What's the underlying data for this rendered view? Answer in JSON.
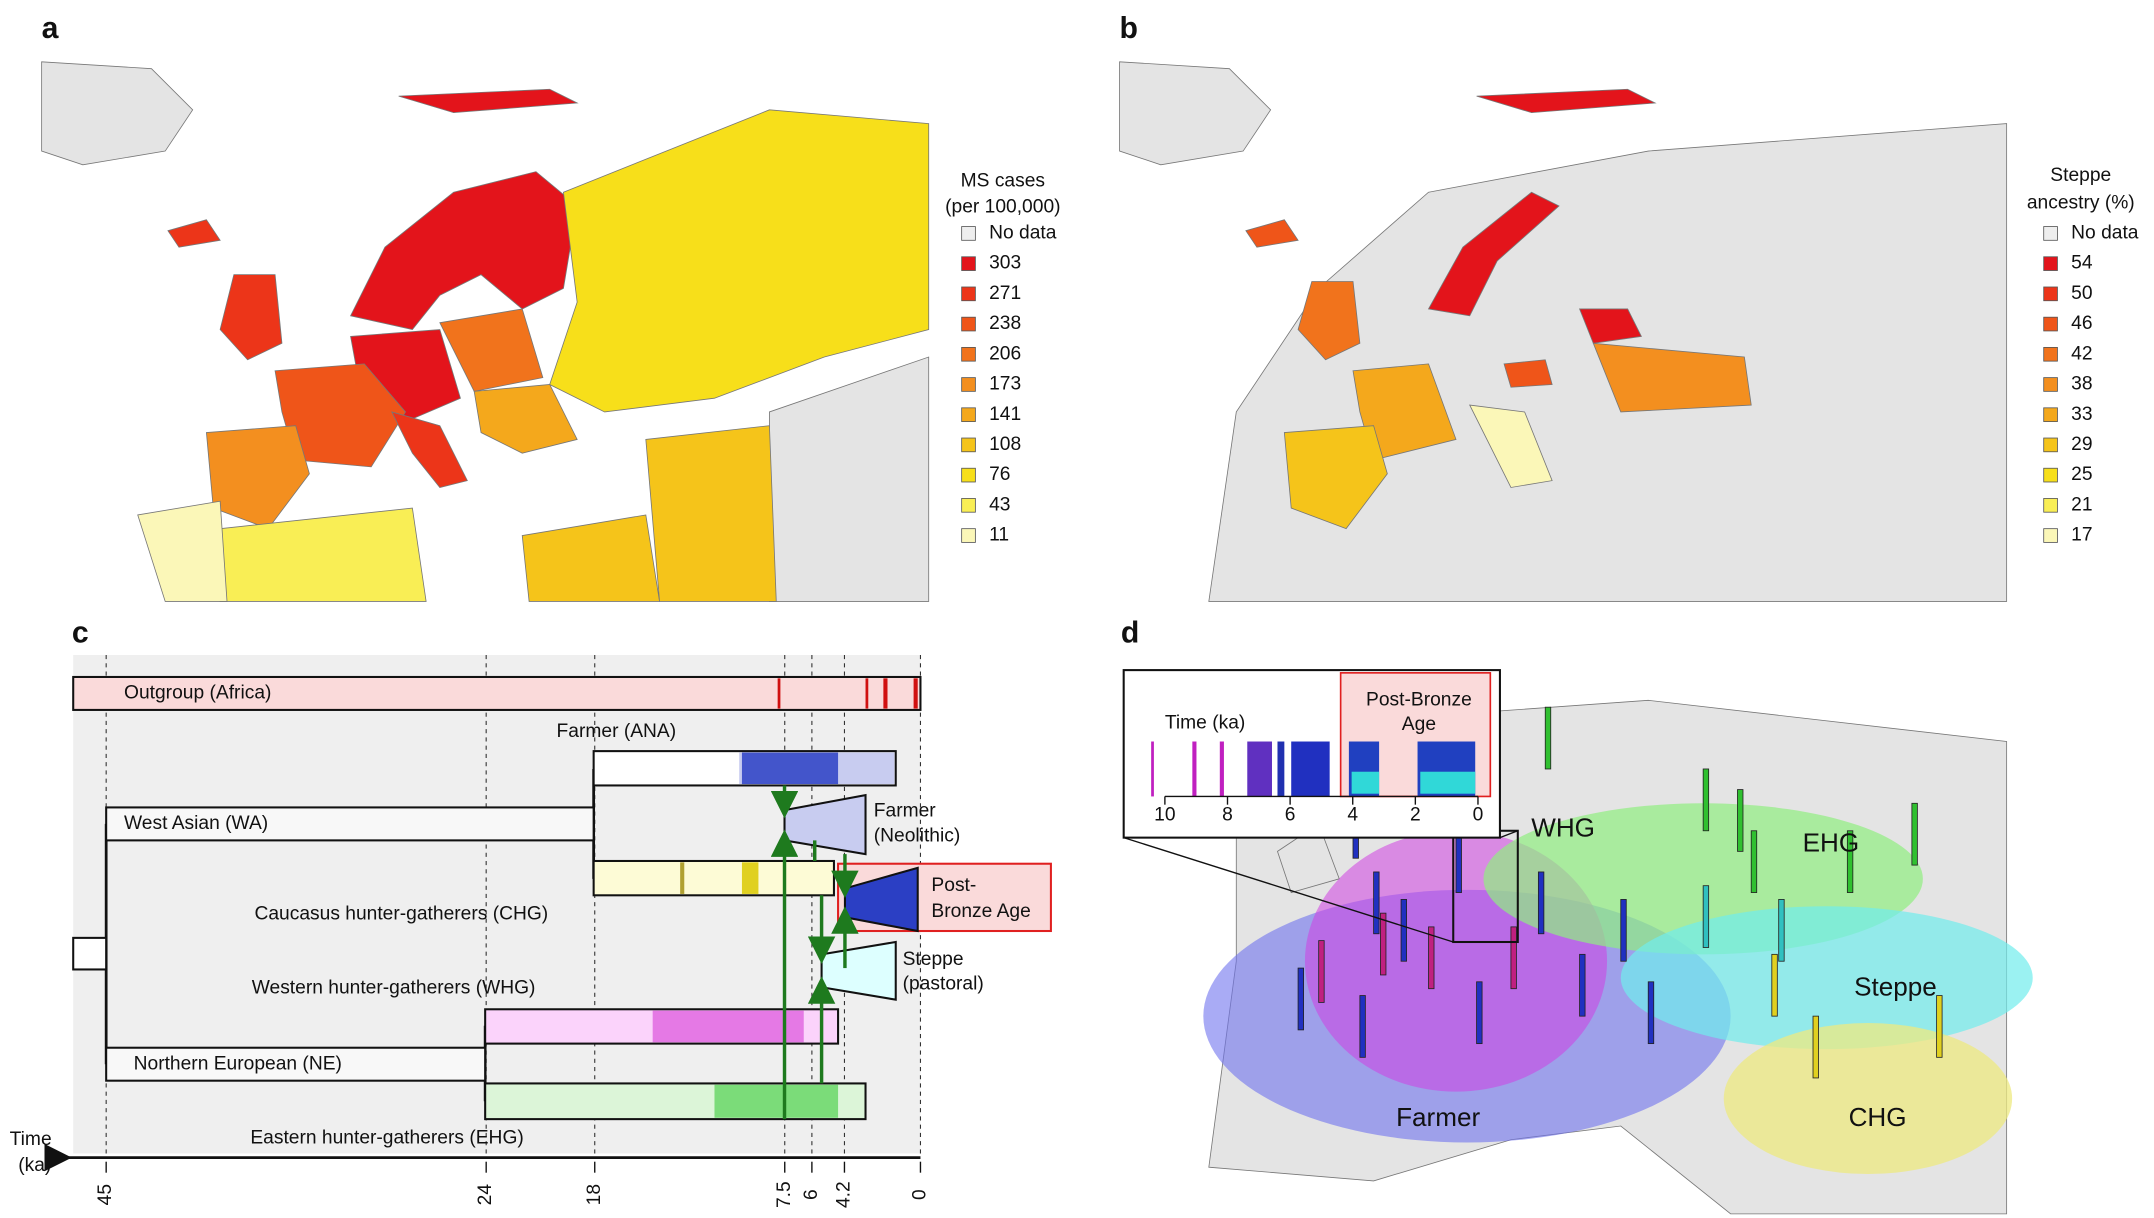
{
  "panel_a": {
    "label": "a",
    "legend_title": [
      "MS cases",
      "(per 100,000)"
    ],
    "legend": [
      {
        "label": "No data",
        "color": "#eeeeee"
      },
      {
        "label": "303",
        "color": "#e3141b"
      },
      {
        "label": "271",
        "color": "#ec3519"
      },
      {
        "label": "238",
        "color": "#ef5519"
      },
      {
        "label": "206",
        "color": "#f1731c"
      },
      {
        "label": "173",
        "color": "#f38f1f"
      },
      {
        "label": "141",
        "color": "#f4a81c"
      },
      {
        "label": "108",
        "color": "#f5c41a"
      },
      {
        "label": "76",
        "color": "#f7df1a"
      },
      {
        "label": "43",
        "color": "#f9ee55"
      },
      {
        "label": "11",
        "color": "#fbf7b8"
      }
    ]
  },
  "panel_b": {
    "label": "b",
    "legend_title": [
      "Steppe",
      "ancestry (%)"
    ],
    "legend": [
      {
        "label": "No data",
        "color": "#eeeeee"
      },
      {
        "label": "54",
        "color": "#e3141b"
      },
      {
        "label": "50",
        "color": "#ec3519"
      },
      {
        "label": "46",
        "color": "#ef5519"
      },
      {
        "label": "42",
        "color": "#f1731c"
      },
      {
        "label": "38",
        "color": "#f38f1f"
      },
      {
        "label": "33",
        "color": "#f4a81c"
      },
      {
        "label": "29",
        "color": "#f5c41a"
      },
      {
        "label": "25",
        "color": "#f7df1a"
      },
      {
        "label": "21",
        "color": "#f9ee55"
      },
      {
        "label": "17",
        "color": "#fbf7b8"
      }
    ]
  },
  "panel_c": {
    "label": "c",
    "groups": {
      "outgroup": "Outgroup (Africa)",
      "farmer_ana": "Farmer (ANA)",
      "wa": "West Asian (WA)",
      "farmer_neo": [
        "Farmer",
        "(Neolithic)"
      ],
      "post_bronze": [
        "Post-",
        "Bronze Age"
      ],
      "chg": "Caucasus hunter-gatherers (CHG)",
      "steppe": [
        "Steppe",
        "(pastoral)"
      ],
      "whg": "Western hunter-gatherers (WHG)",
      "ne": "Northern European (NE)",
      "ehg": "Eastern hunter-gatherers (EHG)"
    },
    "axis_label": [
      "Time",
      "(ka)"
    ],
    "xticks": [
      45,
      24,
      18,
      7.5,
      6,
      4.2,
      0
    ]
  },
  "panel_d": {
    "label": "d",
    "inset_axis_label": "Time (ka)",
    "inset_box": [
      "Post-Bronze",
      "Age"
    ],
    "inset_ticks": [
      10,
      8,
      6,
      4,
      2,
      0
    ],
    "regions": {
      "whg": "WHG",
      "ehg": "EHG",
      "steppe": "Steppe",
      "farmer": "Farmer",
      "chg": "CHG"
    }
  }
}
